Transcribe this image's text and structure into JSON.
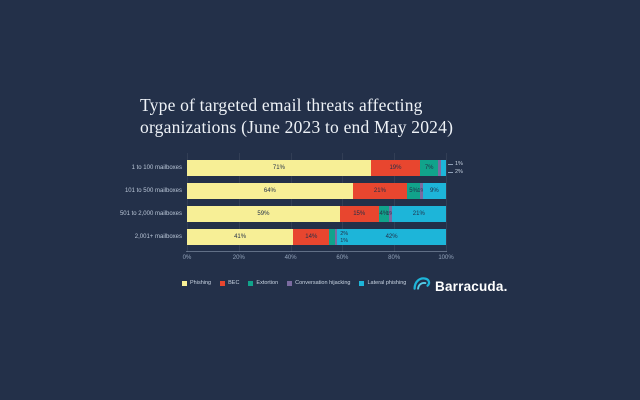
{
  "page": {
    "background": "#233049"
  },
  "title": "Type of targeted email threats affecting organizations (June 2023 to end May 2024)",
  "chart_data": {
    "type": "bar",
    "variant": "horizontal_stacked",
    "title": "Type of targeted email threats affecting organizations (June 2023 to end May 2024)",
    "categories": [
      "1 to 100 mailboxes",
      "101 to 500 mailboxes",
      "501 to 2,000 mailboxes",
      "2,001+ mailboxes"
    ],
    "series": [
      {
        "name": "Phishing",
        "color": "#f7ef96",
        "values": [
          71,
          64,
          59,
          41
        ]
      },
      {
        "name": "BEC",
        "color": "#e8462f",
        "values": [
          19,
          21,
          15,
          14
        ]
      },
      {
        "name": "Extortion",
        "color": "#11a38b",
        "values": [
          7,
          5,
          4,
          2
        ]
      },
      {
        "name": "Conversation hijacking",
        "color": "#7b6ba0",
        "values": [
          1,
          1,
          1,
          1
        ]
      },
      {
        "name": "Lateral phishing",
        "color": "#1db5d9",
        "values": [
          2,
          9,
          21,
          42
        ]
      }
    ],
    "x_ticks": [
      0,
      20,
      40,
      60,
      80,
      100
    ],
    "xlim": [
      0,
      100
    ],
    "value_suffix": "%",
    "grid": true,
    "legend_position": "bottom",
    "inside_label_min": 4,
    "small_label_modes": [
      "outside-right",
      "inline",
      "inline",
      "stacked-inline"
    ]
  },
  "footer": {
    "logo_text": "Barracuda."
  }
}
